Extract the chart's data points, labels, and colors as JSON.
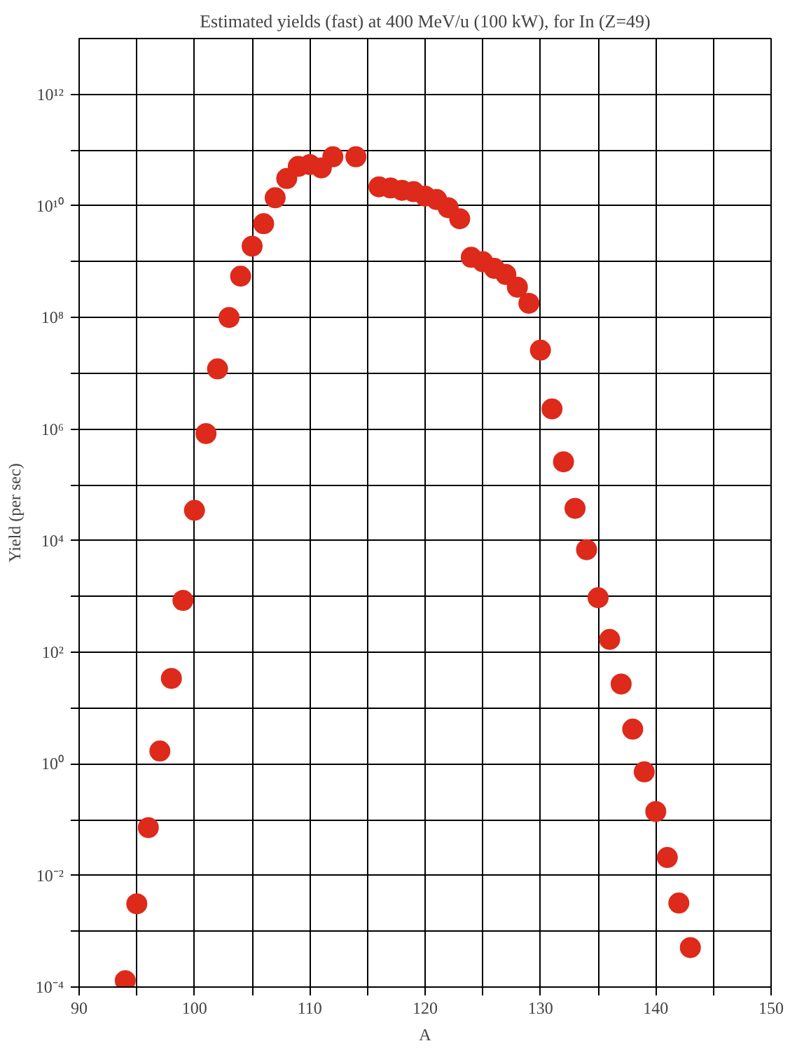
{
  "chart_data": {
    "type": "scatter",
    "title": "Estimated yields (fast) at 400 MeV/u (100 kW), for In (Z=49)",
    "xlabel": "A",
    "ylabel": "Yield (per sec)",
    "log": "y",
    "grid": true,
    "marker": "circle",
    "xlim": [
      90,
      150
    ],
    "ylim": [
      0.0001,
      10000000000000.0
    ],
    "xticks": [
      90,
      {
        "value": 95,
        "label": null
      },
      100,
      {
        "value": 105,
        "label": null
      },
      110,
      {
        "value": 115,
        "label": null
      },
      120,
      {
        "value": 125,
        "label": null
      },
      130,
      {
        "value": 135,
        "label": null
      },
      140,
      {
        "value": 145,
        "label": null
      },
      150
    ],
    "yticks": [
      {
        "value": 0.0001,
        "label": "10⁻⁴"
      },
      {
        "value": 0.001,
        "label": null
      },
      {
        "value": 0.01,
        "label": "10⁻²"
      },
      {
        "value": 0.1,
        "label": null
      },
      {
        "value": 1,
        "label": "10⁰"
      },
      {
        "value": 10,
        "label": null
      },
      {
        "value": 100,
        "label": "10²"
      },
      {
        "value": 1000,
        "label": null
      },
      {
        "value": 10000,
        "label": "10⁴"
      },
      {
        "value": 100000,
        "label": null
      },
      {
        "value": 1000000,
        "label": "10⁶"
      },
      {
        "value": 10000000,
        "label": null
      },
      {
        "value": 100000000,
        "label": "10⁸"
      },
      {
        "value": 1000000000,
        "label": null
      },
      {
        "value": 10000000000,
        "label": "10¹⁰"
      },
      {
        "value": 100000000000,
        "label": null
      },
      {
        "value": 1000000000000,
        "label": "10¹²"
      }
    ],
    "x": [
      94,
      95,
      96,
      97,
      98,
      99,
      100,
      101,
      102,
      103,
      104,
      105,
      106,
      107,
      108,
      109,
      110,
      111,
      112,
      114,
      116,
      117,
      118,
      119,
      120,
      121,
      122,
      123,
      124,
      125,
      126,
      127,
      128,
      129,
      130,
      131,
      132,
      133,
      134,
      135,
      136,
      137,
      138,
      139,
      140,
      141,
      142,
      143
    ],
    "series": [
      {
        "color": "#dd2a1b",
        "values": [
          0.00013,
          0.0031,
          0.072,
          1.7,
          34,
          850,
          35000.0,
          830000.0,
          12000000.0,
          100000000.0,
          550000000.0,
          1900000000.0,
          4800000000.0,
          14000000000.0,
          31000000000.0,
          51000000000.0,
          55000000000.0,
          48000000000.0,
          76000000000.0,
          76000000000.0,
          22000000000.0,
          21000000000.0,
          19000000000.0,
          18000000000.0,
          15000000000.0,
          13000000000.0,
          9300000000.0,
          5900000000.0,
          1200000000.0,
          1000000000.0,
          760000000.0,
          590000000.0,
          350000000.0,
          180000000.0,
          26000000.0,
          2300000.0,
          260000.0,
          38000.0,
          6900.0,
          950,
          170,
          27,
          4.2,
          0.72,
          0.14,
          0.021,
          0.0032,
          0.00051
        ]
      }
    ]
  }
}
